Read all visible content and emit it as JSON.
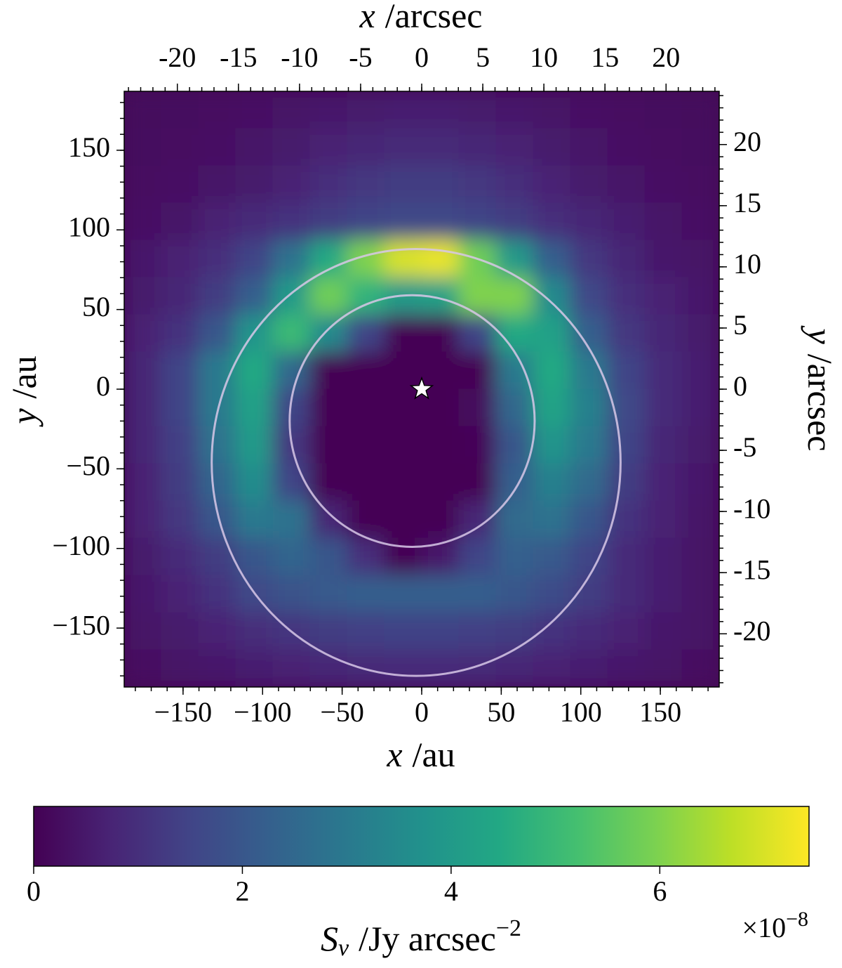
{
  "chart_data": {
    "type": "heatmap",
    "colormap": "viridis",
    "xlabel": {
      "var": "x",
      "unit": "/au"
    },
    "ylabel": {
      "var": "y",
      "unit": "/au"
    },
    "x2label": {
      "var": "x",
      "unit": "/arcsec"
    },
    "y2label": {
      "var": "y",
      "unit": "/arcsec"
    },
    "colorbar": {
      "var": "S",
      "sub": "ν",
      "unit": "/Jy arcsec",
      "sup": "−2",
      "offset": {
        "base": "×10",
        "exp": "−8"
      },
      "clim": [
        0,
        7.43
      ],
      "ticks": [
        0,
        2,
        4,
        6
      ]
    },
    "xlim": [
      -187,
      187
    ],
    "ylim": [
      -187,
      187
    ],
    "xticks": [
      {
        "value": -150,
        "label": "−150"
      },
      {
        "value": -100,
        "label": "−100"
      },
      {
        "value": -50,
        "label": "−50"
      },
      0,
      50,
      100,
      150
    ],
    "yticks": [
      {
        "value": -150,
        "label": "−150"
      },
      {
        "value": -100,
        "label": "−100"
      },
      {
        "value": -50,
        "label": "−50"
      },
      0,
      50,
      100,
      150
    ],
    "minor_ticks": [
      -180,
      -170,
      -160,
      -150,
      -140,
      -130,
      -120,
      -110,
      -100,
      -90,
      -80,
      -70,
      -60,
      -50,
      -40,
      -30,
      -20,
      -10,
      0,
      10,
      20,
      30,
      40,
      50,
      60,
      70,
      80,
      90,
      100,
      110,
      120,
      130,
      140,
      150,
      160,
      170,
      180
    ],
    "x2lim": [
      -24.35,
      24.35
    ],
    "y2lim": [
      -24.35,
      24.35
    ],
    "x2ticks": [
      -20,
      -15,
      -10,
      -5,
      0,
      5,
      10,
      15,
      20
    ],
    "y2ticks": [
      -20,
      -15,
      -10,
      -5,
      0,
      5,
      10,
      15,
      20
    ],
    "minor2_ticks": [
      -24,
      -23,
      -22,
      -21,
      -20,
      -19,
      -18,
      -17,
      -16,
      -15,
      -14,
      -13,
      -12,
      -11,
      -10,
      -9,
      -8,
      -7,
      -6,
      -5,
      -4,
      -3,
      -2,
      -1,
      0,
      1,
      2,
      3,
      4,
      5,
      6,
      7,
      8,
      9,
      10,
      11,
      12,
      13,
      14,
      15,
      16,
      17,
      18,
      19,
      20,
      21,
      22,
      23,
      24
    ],
    "x": [
      -175.31,
      -151.94,
      -128.56,
      -105.19,
      -81.81,
      -58.44,
      -35.06,
      -11.69,
      11.69,
      35.06,
      58.44,
      81.81,
      105.19,
      128.56,
      151.94,
      175.31
    ],
    "y": [
      175.31,
      151.94,
      128.56,
      105.19,
      81.81,
      58.44,
      35.06,
      11.69,
      -11.69,
      -35.06,
      -58.44,
      -81.81,
      -105.19,
      -128.56,
      -151.94,
      -175.31
    ],
    "z": [
      [
        0.2,
        0.25,
        0.3,
        0.35,
        0.4,
        0.5,
        0.55,
        0.6,
        0.6,
        0.55,
        0.5,
        0.4,
        0.35,
        0.3,
        0.25,
        0.2
      ],
      [
        0.25,
        0.3,
        0.35,
        0.45,
        0.55,
        0.7,
        0.8,
        0.85,
        0.85,
        0.8,
        0.7,
        0.55,
        0.45,
        0.35,
        0.3,
        0.25
      ],
      [
        0.3,
        0.35,
        0.45,
        0.55,
        0.75,
        1.0,
        1.2,
        1.3,
        1.3,
        1.2,
        1.0,
        0.75,
        0.55,
        0.45,
        0.35,
        0.3
      ],
      [
        0.35,
        0.45,
        0.7,
        0.9,
        1.1,
        1.3,
        1.5,
        1.6,
        1.6,
        1.5,
        1.3,
        1.0,
        0.8,
        0.6,
        0.45,
        0.35
      ],
      [
        0.5,
        0.7,
        1.0,
        1.5,
        2.8,
        4.5,
        6.0,
        7.0,
        7.2,
        5.8,
        4.0,
        2.2,
        1.2,
        0.8,
        0.5,
        0.4
      ],
      [
        0.55,
        0.8,
        1.3,
        2.2,
        4.0,
        5.8,
        4.8,
        4.0,
        4.2,
        6.0,
        6.0,
        3.5,
        1.6,
        1.0,
        0.7,
        0.5
      ],
      [
        0.7,
        1.1,
        2.0,
        3.8,
        5.0,
        3.5,
        1.5,
        0,
        0,
        1.5,
        4.5,
        4.2,
        2.2,
        1.2,
        0.8,
        0.55
      ],
      [
        0.8,
        1.5,
        3.0,
        4.5,
        2.5,
        0,
        0,
        0,
        0,
        0,
        3.0,
        4.5,
        3.0,
        1.5,
        0.9,
        0.6
      ],
      [
        0.8,
        1.5,
        3.0,
        4.2,
        1.5,
        0,
        0,
        0,
        0,
        0.2,
        2.5,
        4.3,
        3.2,
        1.6,
        0.9,
        0.6
      ],
      [
        0.8,
        1.4,
        2.8,
        4.0,
        1.2,
        0,
        0,
        0,
        0,
        0.1,
        2.0,
        3.8,
        3.0,
        1.5,
        0.8,
        0.55
      ],
      [
        0.7,
        1.3,
        2.4,
        3.6,
        1.5,
        0,
        0,
        0,
        0,
        0,
        2.2,
        3.2,
        2.6,
        1.3,
        0.75,
        0.5
      ],
      [
        0.7,
        1.2,
        2.0,
        3.0,
        2.8,
        0.8,
        0,
        0,
        0,
        0.8,
        2.6,
        2.8,
        2.0,
        1.1,
        0.7,
        0.45
      ],
      [
        0.55,
        0.9,
        1.3,
        2.0,
        2.4,
        2.0,
        1.0,
        0,
        0.5,
        1.5,
        2.3,
        2.1,
        1.5,
        0.9,
        0.6,
        0.4
      ],
      [
        0.5,
        0.75,
        1.1,
        1.6,
        1.9,
        2.1,
        2.2,
        2.2,
        2.2,
        2.2,
        2.0,
        1.7,
        1.3,
        0.9,
        0.6,
        0.4
      ],
      [
        0.4,
        0.55,
        0.75,
        0.95,
        1.15,
        1.3,
        1.4,
        1.45,
        1.45,
        1.4,
        1.3,
        1.1,
        0.9,
        0.7,
        0.5,
        0.4
      ],
      [
        0.3,
        0.4,
        0.5,
        0.6,
        0.7,
        0.8,
        0.85,
        0.9,
        0.9,
        0.85,
        0.8,
        0.7,
        0.6,
        0.5,
        0.4,
        0.3
      ]
    ],
    "rings": [
      {
        "cx": -3.5,
        "cy": -46,
        "rx": 128.5,
        "ry": 134,
        "color": "#d8c8e8"
      },
      {
        "cx": -6,
        "cy": -20,
        "rx": 77,
        "ry": 79,
        "color": "#d8c8e8"
      }
    ],
    "star": {
      "x": 0,
      "y": 0,
      "color": "#ffffff"
    }
  }
}
